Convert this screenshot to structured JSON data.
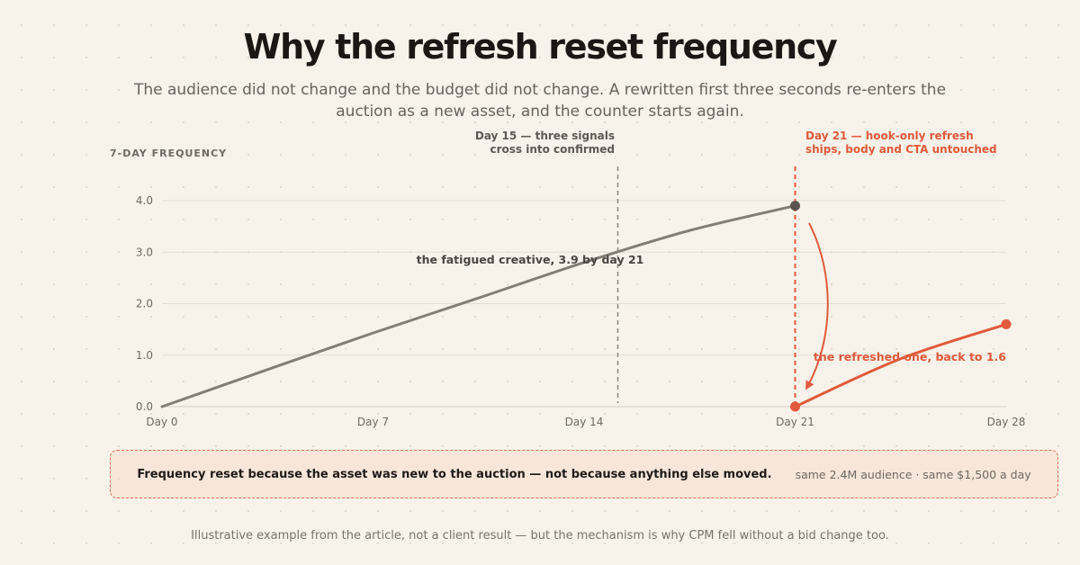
{
  "header": {
    "title": "Why the refresh reset frequency",
    "subtitle": "The audience did not change and the budget did not change. A rewritten first three seconds re-enters the auction as a new asset, and the counter starts again."
  },
  "chart_data": {
    "type": "line",
    "title": "Why the refresh reset frequency",
    "ylabel": "7-DAY FREQUENCY",
    "xlabel": "",
    "xlim": [
      0,
      28
    ],
    "ylim": [
      0,
      4
    ],
    "x_ticks": [
      {
        "value": 0,
        "label": "Day 0"
      },
      {
        "value": 7,
        "label": "Day 7"
      },
      {
        "value": 14,
        "label": "Day 14"
      },
      {
        "value": 21,
        "label": "Day 21"
      },
      {
        "value": 28,
        "label": "Day 28"
      }
    ],
    "y_ticks": [
      {
        "value": 0,
        "label": "0.0"
      },
      {
        "value": 1,
        "label": "1.0"
      },
      {
        "value": 2,
        "label": "2.0"
      },
      {
        "value": 3,
        "label": "3.0"
      },
      {
        "value": 4,
        "label": "4.0"
      }
    ],
    "grid": true,
    "series": [
      {
        "name": "the fatigued creative, 3.9 by day 21",
        "color": "#847d74",
        "x": [
          0,
          3.5,
          7,
          10.5,
          14,
          17.5,
          21
        ],
        "y": [
          0,
          0.72,
          1.43,
          2.11,
          2.8,
          3.42,
          3.9
        ],
        "end_marker": {
          "x": 21,
          "y": 3.9,
          "color": "#5a5450"
        }
      },
      {
        "name": "the refreshed one, back to 1.6",
        "color": "#e05a3b",
        "x": [
          21,
          24.5,
          28
        ],
        "y": [
          0,
          0.93,
          1.6
        ],
        "start_marker": {
          "x": 21,
          "y": 0,
          "color": "#e05a3b"
        },
        "end_marker": {
          "x": 28,
          "y": 1.6,
          "color": "#e05a3b"
        }
      }
    ],
    "vlines": [
      {
        "x": 15,
        "color": "#8e8780",
        "label": "Day 15 — three signals cross into confirmed"
      },
      {
        "x": 21,
        "color": "#e05a3b",
        "label": "Day 21 — hook-only refresh ships, body and CTA untouched"
      }
    ],
    "annotations": {
      "fatigued_label": "the fatigued creative, 3.9 by day 21",
      "refreshed_label": "the refreshed one, back to 1.6",
      "confirmed_line1": "Day 15 — three signals",
      "confirmed_line2": "cross into confirmed",
      "refresh_line1": "Day 21 — hook-only refresh",
      "refresh_line2": "ships, body and CTA untouched"
    }
  },
  "callout": {
    "main": "Frequency reset because the asset was new to the auction — not because anything else moved.",
    "side": "same 2.4M audience · same $1,500 a day"
  },
  "footnote": "Illustrative example from the article, not a client result — but the mechanism is why CPM fell without a bid change too.",
  "colors": {
    "accent": "#e05a3b",
    "fatigued_line": "#847d74",
    "background": "#f8f2ea"
  }
}
